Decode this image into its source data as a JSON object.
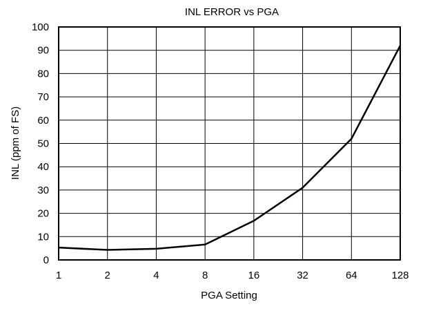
{
  "chart_data": {
    "type": "line",
    "title": "INL ERROR vs PGA",
    "xlabel": "PGA Setting",
    "ylabel": "INL (ppm of FS)",
    "x_scale": "log2",
    "categories": [
      "1",
      "2",
      "4",
      "8",
      "16",
      "32",
      "64",
      "128"
    ],
    "x": [
      1,
      2,
      4,
      8,
      16,
      32,
      64,
      128
    ],
    "ylim": [
      0,
      100
    ],
    "yticks": [
      0,
      10,
      20,
      30,
      40,
      50,
      60,
      70,
      80,
      90,
      100
    ],
    "grid": true,
    "legend": "none",
    "series": [
      {
        "values": [
          5.3,
          4.3,
          4.8,
          6.6,
          16.8,
          31,
          52,
          92
        ],
        "color": "#000000"
      }
    ]
  }
}
